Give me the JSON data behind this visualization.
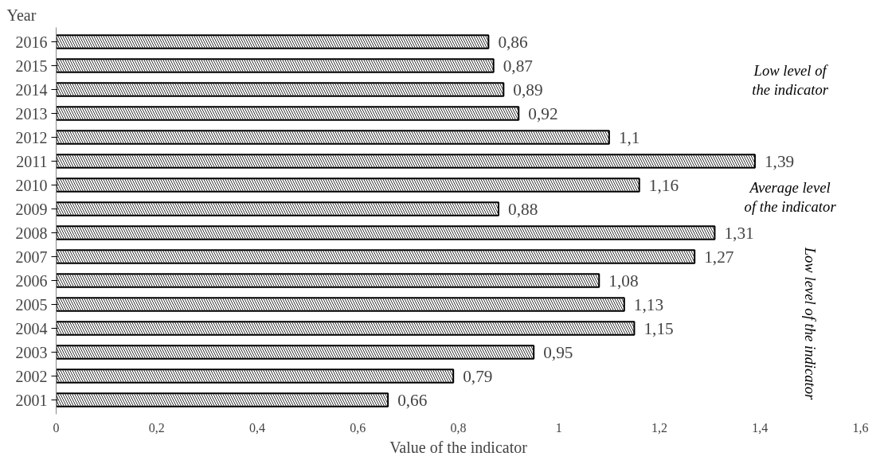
{
  "chart_data": {
    "type": "bar",
    "orientation": "horizontal",
    "xlabel": "Value of the indicator",
    "ylabel": "Year",
    "categories": [
      "2016",
      "2015",
      "2014",
      "2013",
      "2012",
      "2011",
      "2010",
      "2009",
      "2008",
      "2007",
      "2006",
      "2005",
      "2004",
      "2003",
      "2002",
      "2001"
    ],
    "values": [
      0.86,
      0.87,
      0.89,
      0.92,
      1.1,
      1.39,
      1.16,
      0.88,
      1.31,
      1.27,
      1.08,
      1.13,
      1.15,
      0.95,
      0.79,
      0.66
    ],
    "value_labels": [
      "0,86",
      "0,87",
      "0,89",
      "0,92",
      "1,1",
      "1,39",
      "1,16",
      "0,88",
      "1,31",
      "1,27",
      "1,08",
      "1,13",
      "1,15",
      "0,95",
      "0,79",
      "0,66"
    ],
    "color": "#000000",
    "xlim": [
      0,
      1.6
    ],
    "xticks": [
      0,
      {
        "value": 0.2,
        "label": "0,2"
      },
      {
        "value": 0.4,
        "label": "0,4"
      },
      {
        "value": 0.6,
        "label": "0,6"
      },
      {
        "value": 0.8,
        "label": "0,8"
      },
      1,
      {
        "value": 1.2,
        "label": "1,2"
      },
      {
        "value": 1.4,
        "label": "1,4"
      },
      {
        "value": 1.6,
        "label": "1,6"
      }
    ],
    "grid": false,
    "annotations": [
      "Low level of the indicator",
      "Average level of the indicator",
      "Low level of the indicator"
    ]
  }
}
